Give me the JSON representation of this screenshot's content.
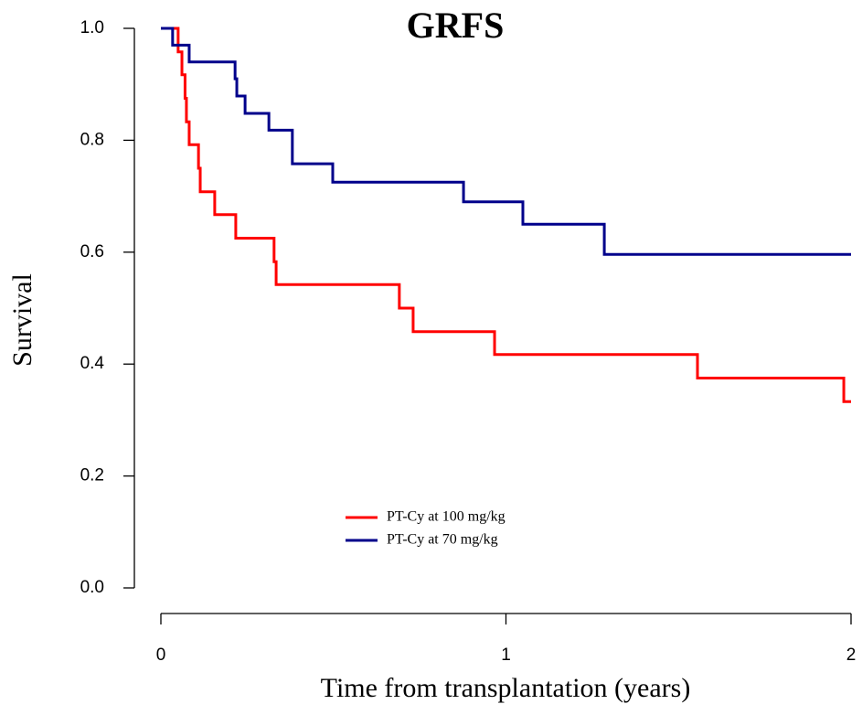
{
  "chart_data": {
    "type": "step",
    "title": "GRFS",
    "x_label": "Time from transplantation (years)",
    "y_label": "Survival",
    "xlim": [
      0,
      2
    ],
    "xticks": [
      0,
      1,
      2
    ],
    "ylim": [
      0,
      1
    ],
    "yticks": [
      {
        "value": 0,
        "label": "0.0"
      },
      0.2,
      0.4,
      0.6,
      0.8,
      {
        "value": 1,
        "label": "1.0"
      }
    ],
    "series": [
      {
        "name": "PT-Cy at 100 mg/kg",
        "color": "#ff0000",
        "x": [
          0,
          0.05,
          0.061,
          0.07,
          0.074,
          0.082,
          0.109,
          0.114,
          0.156,
          0.217,
          0.328,
          0.334,
          0.691,
          0.731,
          0.967,
          1.555,
          1.979,
          2
        ],
        "values": [
          1,
          0.958,
          0.917,
          0.875,
          0.833,
          0.792,
          0.75,
          0.708,
          0.667,
          0.625,
          0.583,
          0.542,
          0.5,
          0.458,
          0.417,
          0.375,
          0.333,
          0.333
        ]
      },
      {
        "name": "PT-Cy at 70 mg/kg",
        "color": "#00008b",
        "x": [
          0,
          0.034,
          0.082,
          0.215,
          0.22,
          0.244,
          0.313,
          0.381,
          0.498,
          0.877,
          1.049,
          1.285,
          2
        ],
        "values": [
          1,
          0.97,
          0.94,
          0.91,
          0.879,
          0.848,
          0.818,
          0.758,
          0.725,
          0.69,
          0.65,
          0.596,
          0.596
        ]
      }
    ]
  }
}
